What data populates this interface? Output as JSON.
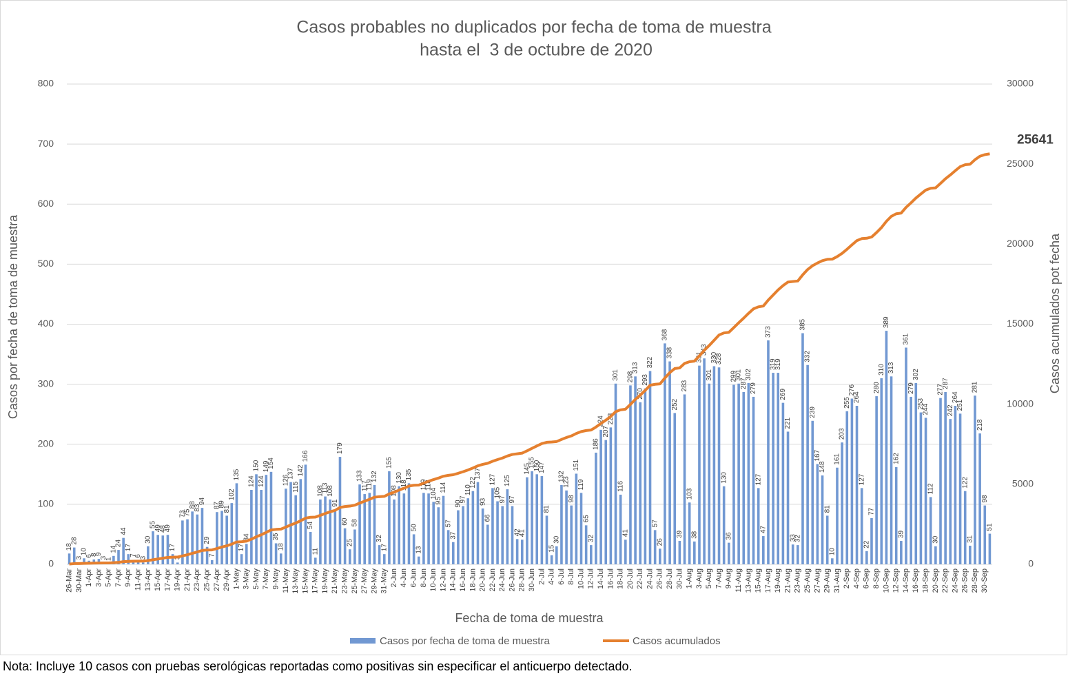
{
  "chart_data": {
    "type": "bar",
    "title": "Casos probables no duplicados por fecha de toma de muestra",
    "subtitle": "hasta el  3 de octubre de 2020",
    "x_label": "Fecha de toma de muestra",
    "y_label": "Casos por fecha de toma de muestra",
    "y2_label": "Casos acumulados pot fecha",
    "note": "Nota: Incluye 10 casos con pruebas serológicas reportadas como positivas sin especificar el anticuerpo detectado.",
    "categories": [
      "26-Mar",
      null,
      "30-Mar",
      null,
      "1-Apr",
      null,
      "3-Apr",
      null,
      "5-Apr",
      null,
      "7-Apr",
      null,
      "9-Apr",
      null,
      "11-Apr",
      null,
      "13-Apr",
      null,
      "15-Apr",
      null,
      "17-Apr",
      null,
      "19-Apr",
      null,
      "21-Apr",
      null,
      "23-Apr",
      null,
      "25-Apr",
      null,
      "27-Apr",
      null,
      "29-Apr",
      null,
      "1-May",
      null,
      "3-May",
      null,
      "5-May",
      null,
      "7-May",
      null,
      "9-May",
      null,
      "11-May",
      null,
      "13-May",
      null,
      "15-May",
      null,
      "17-May",
      null,
      "19-May",
      null,
      "21-May",
      null,
      "23-May",
      null,
      "25-May",
      null,
      "27-May",
      null,
      "29-May",
      null,
      "31-May",
      null,
      "2-Jun",
      null,
      "4-Jun",
      null,
      "6-Jun",
      null,
      "8-Jun",
      null,
      "10-Jun",
      null,
      "12-Jun",
      null,
      "14-Jun",
      null,
      "16-Jun",
      null,
      "18-Jun",
      null,
      "20-Jun",
      null,
      "22-Jun",
      null,
      "24-Jun",
      null,
      "26-Jun",
      null,
      "28-Jun",
      null,
      "30-Jun",
      null,
      "2-Jul",
      null,
      "4-Jul",
      null,
      "6-Jul",
      null,
      "8-Jul",
      null,
      "10-Jul",
      null,
      "12-Jul",
      null,
      "14-Jul",
      null,
      "16-Jul",
      null,
      "18-Jul",
      null,
      "20-Jul",
      null,
      "22-Jul",
      null,
      "24-Jul",
      null,
      "26-Jul",
      null,
      "28-Jul",
      null,
      "30-Jul",
      null,
      "1-Aug",
      null,
      "3-Aug",
      null,
      "5-Aug",
      null,
      "7-Aug",
      null,
      "9-Aug",
      null,
      "11-Aug",
      null,
      "13-Aug",
      null,
      "15-Aug",
      null,
      "17-Aug",
      null,
      "19-Aug",
      null,
      "21-Aug",
      null,
      "23-Aug",
      null,
      "25-Aug",
      null,
      "27-Aug",
      null,
      "29-Aug",
      null,
      "31-Aug",
      null,
      "2-Sep",
      null,
      "4-Sep",
      null,
      "6-Sep",
      null,
      "8-Sep",
      null,
      "10-Sep",
      null,
      "12-Sep",
      null,
      "14-Sep",
      null,
      "16-Sep",
      null,
      "18-Sep",
      null,
      "20-Sep",
      null,
      "22-Sep",
      null,
      "24-Sep",
      null,
      "26-Sep",
      null,
      "28-Sep",
      null,
      "30-Sep",
      null
    ],
    "series": [
      {
        "name": "Casos por fecha de toma de muestra",
        "type": "bar",
        "color": "#7198d2",
        "values": [
          18,
          28,
          3,
          10,
          6,
          8,
          9,
          3,
          1,
          14,
          24,
          44,
          17,
          7,
          6,
          3,
          30,
          55,
          49,
          48,
          49,
          17,
          3,
          73,
          75,
          88,
          83,
          94,
          29,
          7,
          87,
          89,
          81,
          102,
          135,
          17,
          34,
          124,
          150,
          124,
          149,
          154,
          35,
          18,
          126,
          137,
          115,
          142,
          166,
          54,
          11,
          108,
          113,
          108,
          91,
          179,
          60,
          25,
          58,
          133,
          117,
          119,
          132,
          32,
          17,
          155,
          108,
          130,
          118,
          135,
          50,
          13,
          119,
          118,
          104,
          95,
          114,
          57,
          37,
          90,
          97,
          110,
          122,
          137,
          93,
          66,
          127,
          105,
          97,
          125,
          97,
          42,
          41,
          145,
          155,
          150,
          147,
          81,
          15,
          30,
          132,
          123,
          98,
          151,
          119,
          65,
          32,
          186,
          224,
          207,
          228,
          301,
          116,
          41,
          298,
          313,
          270,
          293,
          322,
          57,
          26,
          368,
          338,
          252,
          39,
          283,
          103,
          38,
          331,
          343,
          301,
          330,
          328,
          130,
          36,
          299,
          301,
          287,
          302,
          279,
          127,
          47,
          373,
          319,
          319,
          269,
          221,
          33,
          32,
          385,
          332,
          239,
          167,
          148,
          81,
          10,
          161,
          203,
          255,
          276,
          264,
          127,
          22,
          77,
          280,
          310,
          389,
          313,
          162,
          39,
          361,
          279,
          302,
          253,
          244,
          112,
          30,
          277,
          287,
          242,
          264,
          251,
          122,
          31,
          281,
          218,
          98,
          51
        ]
      },
      {
        "name": "Casos acumulados",
        "type": "line",
        "axis": "y2",
        "color": "#e5802f",
        "values": [
          18,
          46,
          49,
          59,
          65,
          73,
          82,
          85,
          86,
          100,
          124,
          168,
          185,
          192,
          198,
          201,
          231,
          286,
          335,
          383,
          432,
          449,
          452,
          525,
          600,
          688,
          771,
          865,
          894,
          901,
          988,
          1077,
          1158,
          1260,
          1395,
          1412,
          1446,
          1570,
          1720,
          1844,
          1993,
          2147,
          2182,
          2200,
          2326,
          2463,
          2578,
          2720,
          2886,
          2940,
          2951,
          3059,
          3172,
          3280,
          3371,
          3550,
          3610,
          3635,
          3693,
          3826,
          3943,
          4062,
          4194,
          4226,
          4243,
          4398,
          4506,
          4636,
          4754,
          4889,
          4939,
          4952,
          5071,
          5189,
          5293,
          5388,
          5502,
          5559,
          5596,
          5686,
          5783,
          5893,
          6015,
          6152,
          6245,
          6311,
          6438,
          6543,
          6640,
          6765,
          6862,
          6904,
          6945,
          7090,
          7245,
          7395,
          7542,
          7623,
          7638,
          7668,
          7800,
          7923,
          8021,
          8172,
          8291,
          8356,
          8388,
          8574,
          8798,
          9005,
          9233,
          9534,
          9650,
          9691,
          9989,
          10302,
          10572,
          10865,
          11187,
          11244,
          11270,
          11638,
          11976,
          12228,
          12267,
          12550,
          12653,
          12691,
          13022,
          13365,
          13666,
          13996,
          14324,
          14454,
          14490,
          14789,
          15090,
          15377,
          15679,
          15958,
          16085,
          16132,
          16505,
          16824,
          17143,
          17412,
          17633,
          17666,
          17698,
          18083,
          18415,
          18654,
          18821,
          18969,
          19050,
          19060,
          19221,
          19424,
          19679,
          19955,
          20219,
          20346,
          20368,
          20445,
          20725,
          21035,
          21424,
          21737,
          21899,
          21938,
          22299,
          22578,
          22880,
          23133,
          23377,
          23489,
          23519,
          23796,
          24083,
          24325,
          24589,
          24840,
          24962,
          24993,
          25274,
          25492,
          25590,
          25641
        ]
      }
    ],
    "ylim": [
      0,
      800
    ],
    "yticks": [
      0,
      100,
      200,
      300,
      400,
      500,
      600,
      700,
      800
    ],
    "y2lim": [
      0,
      30000
    ],
    "y2ticks": [
      0,
      5000,
      10000,
      15000,
      20000,
      25000,
      30000
    ],
    "grid": true,
    "legend": "bottom"
  }
}
